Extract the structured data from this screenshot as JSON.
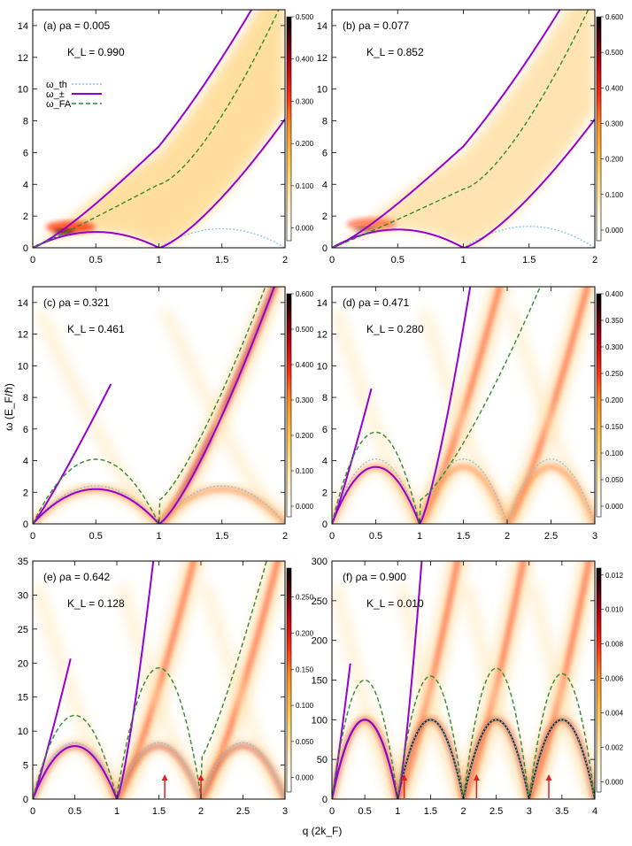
{
  "figure": {
    "ylabel_shared": "ω (E_F/ℏ)",
    "xlabel_shared": "q (2k_F)"
  },
  "legend": {
    "entries": [
      {
        "label": "ω_th",
        "style": "dotted",
        "color": "#7ec8e3"
      },
      {
        "label": "ω_±",
        "style": "solid",
        "color": "#9400d3"
      },
      {
        "label": "ω_FA",
        "style": "dashed",
        "color": "#2e8b2e"
      }
    ]
  },
  "colors": {
    "upper_branch": "#9400d3",
    "fa": "#2e8b2e",
    "th": "#7ec8e3",
    "arrow": "#e02020",
    "colorbar": [
      "#ffffff",
      "#ffe8b0",
      "#ffc040",
      "#ff8c20",
      "#ff3010",
      "#c00010",
      "#5a0008",
      "#000000"
    ]
  },
  "chart_data": [
    {
      "type": "heatmap",
      "label": "(a) ρa = 0.005",
      "kl": "K_L = 0.990",
      "xlim": [
        0,
        2
      ],
      "ylim": [
        0,
        15
      ],
      "xticks": [
        "0",
        "0.5",
        "1",
        "1.5",
        "2"
      ],
      "yticks": [
        "0",
        "2",
        "4",
        "6",
        "8",
        "10",
        "12",
        "14"
      ],
      "cbar_ticks": [
        "0.000",
        "0.100",
        "0.200",
        "0.300",
        "0.400",
        "0.500"
      ],
      "cbar_range": [
        -0.03,
        0.5
      ],
      "K": 0.99,
      "fa_kink": 4.0,
      "fa_end": 15.0,
      "th_scale": 1.2,
      "th_period": 1,
      "has_lower": true,
      "single_upper": false,
      "show_legend": true,
      "arrows": []
    },
    {
      "type": "heatmap",
      "label": "(b) ρa = 0.077",
      "kl": "K_L = 0.852",
      "xlim": [
        0,
        2
      ],
      "ylim": [
        0,
        15
      ],
      "xticks": [
        "0",
        "0.5",
        "1",
        "1.5",
        "2"
      ],
      "yticks": [
        "0",
        "2",
        "4",
        "6",
        "8",
        "10",
        "12",
        "14"
      ],
      "cbar_ticks": [
        "0.000",
        "0.100",
        "0.200",
        "0.300",
        "0.400",
        "0.500",
        "0.600"
      ],
      "cbar_range": [
        -0.03,
        0.6
      ],
      "K": 0.852,
      "fa_kink": 3.7,
      "fa_end": 15.0,
      "th_scale": 1.35,
      "th_period": 1,
      "has_lower": true,
      "single_upper": false,
      "show_legend": false,
      "arrows": []
    },
    {
      "type": "heatmap",
      "label": "(c) ρa = 0.321",
      "kl": "K_L = 0.461",
      "xlim": [
        0,
        2
      ],
      "ylim": [
        0,
        15
      ],
      "xticks": [
        "0",
        "0.5",
        "1",
        "1.5",
        "2"
      ],
      "yticks": [
        "0",
        "2",
        "4",
        "6",
        "8",
        "10",
        "12",
        "14"
      ],
      "cbar_ticks": [
        "0.000",
        "0.100",
        "0.200",
        "0.300",
        "0.400",
        "0.500",
        "0.600"
      ],
      "cbar_range": [
        -0.03,
        0.6
      ],
      "K": 0.461,
      "fa_peak": 4.3,
      "fa_end": 15.0,
      "th_scale": 2.4,
      "th_period": 1,
      "upper_xmax": 0.62,
      "has_lower": false,
      "single_upper": true,
      "show_legend": false,
      "arrows": []
    },
    {
      "type": "heatmap",
      "label": "(d) ρa = 0.471",
      "kl": "K_L = 0.280",
      "xlim": [
        0,
        3
      ],
      "ylim": [
        0,
        15
      ],
      "xticks": [
        "0",
        "0.5",
        "1",
        "1.5",
        "2",
        "2.5",
        "3"
      ],
      "yticks": [
        "0",
        "2",
        "4",
        "6",
        "8",
        "10",
        "12",
        "14"
      ],
      "cbar_ticks": [
        "0.000",
        "0.050",
        "0.100",
        "0.150",
        "0.200",
        "0.250",
        "0.300",
        "0.350",
        "0.400"
      ],
      "cbar_range": [
        -0.02,
        0.4
      ],
      "K": 0.28,
      "fa_peak": 6.1,
      "fa_end": 15.0,
      "th_scale": 4.1,
      "th_period": 1,
      "upper_xmax": 0.45,
      "has_lower": false,
      "single_upper": true,
      "show_legend": false,
      "arrows": []
    },
    {
      "type": "heatmap",
      "label": "(e) ρa = 0.642",
      "kl": "K_L = 0.128",
      "xlim": [
        0,
        3
      ],
      "ylim": [
        0,
        35
      ],
      "xticks": [
        "0",
        "0.5",
        "1",
        "1.5",
        "2",
        "2.5",
        "3"
      ],
      "yticks": [
        "0",
        "5",
        "10",
        "15",
        "20",
        "25",
        "30",
        "35"
      ],
      "cbar_ticks": [
        "0.000",
        "0.050",
        "0.100",
        "0.150",
        "0.200",
        "0.250"
      ],
      "cbar_range": [
        -0.02,
        0.29
      ],
      "K": 0.128,
      "fa_peak": 12.3,
      "fa_peak2": 18.8,
      "fa_end": 35.0,
      "th_scale": 8.3,
      "th_period": 1,
      "upper_xmax": 0.45,
      "has_lower": false,
      "single_upper": true,
      "show_legend": false,
      "arrows": [
        1.57,
        2.0
      ]
    },
    {
      "type": "heatmap",
      "label": "(f) ρa = 0.900",
      "kl": "K_L = 0.010",
      "xlim": [
        0,
        4
      ],
      "ylim": [
        0,
        300
      ],
      "xticks": [
        "0",
        "0.5",
        "1",
        "1.5",
        "2",
        "2.5",
        "3",
        "3.5",
        "4"
      ],
      "yticks": [
        "0",
        "50",
        "100",
        "150",
        "200",
        "250",
        "300"
      ],
      "cbar_ticks": [
        "0.000",
        "0.002",
        "0.004",
        "0.006",
        "0.008",
        "0.010",
        "0.012"
      ],
      "cbar_range": [
        -0.0006,
        0.0124
      ],
      "K": 0.01,
      "fa_peak": 150,
      "fa_end": 300,
      "th_scale": 100,
      "th_period": 1,
      "upper_xmax": 0.28,
      "has_lower": false,
      "single_upper": true,
      "show_legend": false,
      "arrows": [
        1.1,
        2.2,
        3.3
      ]
    }
  ]
}
